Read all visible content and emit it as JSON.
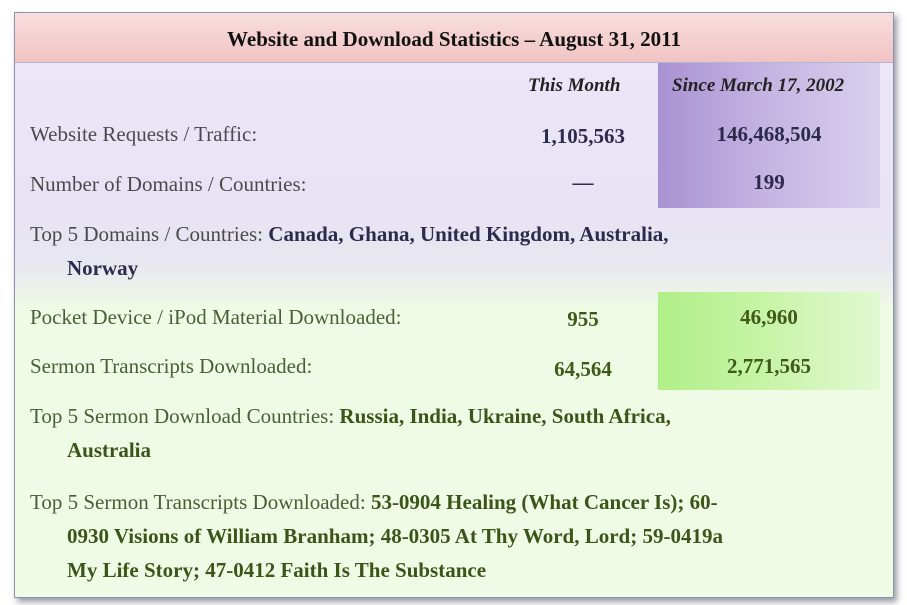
{
  "title": "Website and Download Statistics – August 31, 2011",
  "columns": {
    "this_month": "This Month",
    "since": "Since March 17, 2002"
  },
  "rows": [
    {
      "label": "Website Requests / Traffic:",
      "this_month": "1,105,563",
      "since": "146,468,504"
    },
    {
      "label": "Number of Domains / Countries:",
      "this_month": "—",
      "since": "199"
    },
    {
      "label": "Pocket Device / iPod  Material  Downloaded:",
      "this_month": "955",
      "since": "46,960"
    },
    {
      "label": "Sermon Transcripts Downloaded:",
      "this_month": "64,564",
      "since": "2,771,565"
    }
  ],
  "top_domains": {
    "intro": "Top 5 Domains / Countries: ",
    "line1": "Canada,  Ghana, United Kingdom, Australia,",
    "line2": "Norway"
  },
  "top_download_countries": {
    "intro": "Top 5 Sermon Download Countries: ",
    "line1": "Russia, India, Ukraine, South Africa,",
    "line2": "Australia"
  },
  "top_transcripts": {
    "intro": "Top 5 Sermon Transcripts Downloaded: ",
    "line1": "53-0904 Healing (What Cancer Is); 60-",
    "line2": "0930 Visions of William Branham; 48-0305 At Thy Word, Lord; 59-0419a",
    "line3": "My Life Story; 47-0412 Faith Is The Substance"
  }
}
